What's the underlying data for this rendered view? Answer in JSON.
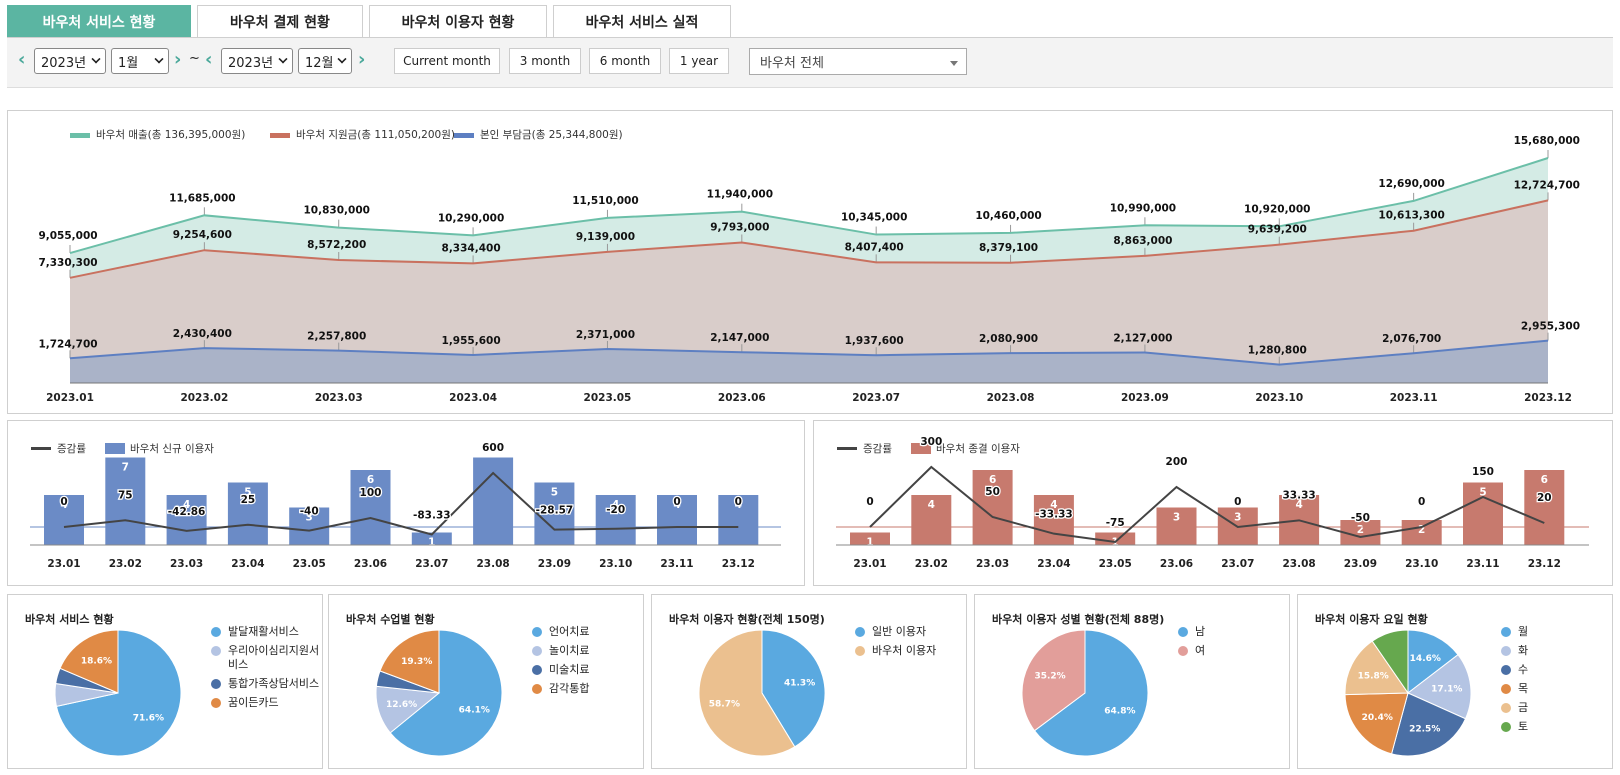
{
  "tabs": [
    "바우처 서비스 현황",
    "바우처 결제 현황",
    "바우처 이용자 현황",
    "바우처 서비스 실적"
  ],
  "filters": {
    "start_year": "2023년",
    "start_month": "1월",
    "tilde": "~",
    "end_year": "2023년",
    "end_month": "12월",
    "periods": [
      "Current month",
      "3 month",
      "6 month",
      "1 year"
    ],
    "voucher_select": "바우처 전체",
    "prev_icon": "chevron-left-icon",
    "next_icon": "chevron-right-icon"
  },
  "colors": {
    "accent": "#5bb5a2",
    "sales": "#6bbfa8",
    "support": "#c9715f",
    "self": "#5d7fc2",
    "new_bar": "#6b8bc6",
    "end_bar": "#c77a6e",
    "rate_line": "#444444",
    "pie": [
      "#5aa9e0",
      "#b4c4e3",
      "#4a6fa5",
      "#e08a45",
      "#ebc08f",
      "#66a84e"
    ]
  },
  "chart_data": [
    {
      "type": "area",
      "categories": [
        "2023.01",
        "2023.02",
        "2023.03",
        "2023.04",
        "2023.05",
        "2023.06",
        "2023.07",
        "2023.08",
        "2023.09",
        "2023.10",
        "2023.11",
        "2023.12"
      ],
      "series": [
        {
          "name": "바우처 매출(총 136,395,000원)",
          "values": [
            9055000,
            11685000,
            10830000,
            10290000,
            11510000,
            11940000,
            10345000,
            10460000,
            10990000,
            10920000,
            12690000,
            15680000
          ],
          "labels": [
            "9,055,000",
            "11,685,000",
            "10,830,000",
            "10,290,000",
            "11,510,000",
            "11,940,000",
            "10,345,000",
            "10,460,000",
            "10,990,000",
            "10,920,000",
            "12,690,000",
            "15,680,000"
          ]
        },
        {
          "name": "바우처 지원금(총 111,050,200원)",
          "values": [
            7330300,
            9254600,
            8572200,
            8334400,
            9139000,
            9793000,
            8407400,
            8379100,
            8863000,
            9639200,
            10613300,
            12724700
          ],
          "labels": [
            "7,330,300",
            "9,254,600",
            "8,572,200",
            "8,334,400",
            "9,139,000",
            "9,793,000",
            "8,407,400",
            "8,379,100",
            "8,863,000",
            "9,639,200",
            "10,613,300",
            "12,724,700"
          ]
        },
        {
          "name": "본인 부담금(총 25,344,800원)",
          "values": [
            1724700,
            2430400,
            2257800,
            1955600,
            2371000,
            2147000,
            1937600,
            2080900,
            2127000,
            1280800,
            2076700,
            2955300
          ],
          "labels": [
            "1,724,700",
            "2,430,400",
            "2,257,800",
            "1,955,600",
            "2,371,000",
            "2,147,000",
            "1,937,600",
            "2,080,900",
            "2,127,000",
            "1,280,800",
            "2,076,700",
            "2,955,300"
          ]
        }
      ]
    },
    {
      "type": "bar",
      "categories": [
        "23.01",
        "23.02",
        "23.03",
        "23.04",
        "23.05",
        "23.06",
        "23.07",
        "23.08",
        "23.09",
        "23.10",
        "23.11",
        "23.12"
      ],
      "series": [
        {
          "name": "바우처 신규 이용자",
          "values": [
            4,
            7,
            4,
            5,
            3,
            6,
            1,
            7,
            5,
            4,
            4,
            4
          ],
          "labels": [
            "4",
            "7",
            "4",
            "5",
            "3",
            "6",
            "1",
            "",
            "5",
            "4",
            "4",
            "4"
          ]
        },
        {
          "name": "증감률",
          "values": [
            0,
            75,
            -42.86,
            25,
            -40,
            100,
            -83.33,
            600,
            -28.57,
            -20,
            0,
            0
          ],
          "labels": [
            "0",
            "75",
            "-42.86",
            "25",
            "-40",
            "100",
            "-83.33",
            "600",
            "-28.57",
            "-20",
            "0",
            "0"
          ]
        }
      ]
    },
    {
      "type": "bar",
      "categories": [
        "23.01",
        "23.02",
        "23.03",
        "23.04",
        "23.05",
        "23.06",
        "23.07",
        "23.08",
        "23.09",
        "23.10",
        "23.11",
        "23.12"
      ],
      "series": [
        {
          "name": "바우처 종결 이용자",
          "values": [
            1,
            4,
            6,
            4,
            1,
            3,
            3,
            4,
            2,
            2,
            5,
            6
          ],
          "labels": [
            "1",
            "4",
            "6",
            "4",
            "1",
            "3",
            "3",
            "4",
            "2",
            "2",
            "5",
            "6"
          ]
        },
        {
          "name": "증감률",
          "values": [
            0,
            300,
            50,
            -33.33,
            -75,
            200,
            0,
            33.33,
            -50,
            0,
            150,
            20
          ],
          "labels": [
            "0",
            "300",
            "50",
            "-33.33",
            "-75",
            "200",
            "0",
            "33.33",
            "-50",
            "0",
            "150",
            "20"
          ]
        }
      ]
    },
    {
      "type": "pie",
      "title": "바우처 서비스 현황",
      "labels": [
        "발달재활서비스",
        "우리아이심리지원서비스",
        "통합가족상담서비스",
        "꿈이든카드"
      ],
      "values": [
        71.6,
        5.8,
        4.0,
        18.6
      ],
      "value_labels": [
        "71.6%",
        "",
        "",
        "18.6%"
      ]
    },
    {
      "type": "pie",
      "title": "바우처 수업별 현황",
      "labels": [
        "언어치료",
        "놀이치료",
        "미술치료",
        "감각통합"
      ],
      "values": [
        64.1,
        12.6,
        4.0,
        19.3
      ],
      "value_labels": [
        "64.1%",
        "12.6%",
        "",
        "19.3%"
      ]
    },
    {
      "type": "pie",
      "title": "바우처 이용자 현황(전체 150명)",
      "labels": [
        "일반 이용자",
        "바우처 이용자"
      ],
      "values": [
        41.3,
        58.7
      ],
      "value_labels": [
        "41.3%",
        "58.7%"
      ]
    },
    {
      "type": "pie",
      "title": "바우처 이용자 성별 현황(전체 88명)",
      "labels": [
        "남",
        "여"
      ],
      "values": [
        64.8,
        35.2
      ],
      "value_labels": [
        "64.8%",
        "35.2%"
      ]
    },
    {
      "type": "pie",
      "title": "바우처 이용자 요일 현황",
      "labels": [
        "월",
        "화",
        "수",
        "목",
        "금",
        "토"
      ],
      "values": [
        14.6,
        17.1,
        22.5,
        20.4,
        15.8,
        9.6
      ],
      "value_labels": [
        "14.6%",
        "17.1%",
        "22.5%",
        "20.4%",
        "15.8%",
        ""
      ]
    }
  ]
}
